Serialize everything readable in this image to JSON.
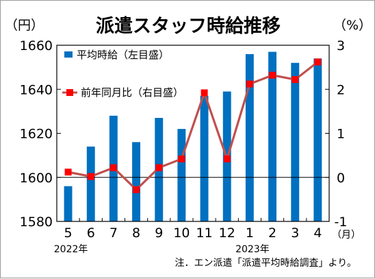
{
  "chart_data": {
    "type": "bar+line",
    "title": "派遣スタッフ時給推移",
    "left_unit": "（円）",
    "right_unit": "（%）",
    "month_unit": "（月）",
    "categories": [
      "5",
      "6",
      "7",
      "8",
      "9",
      "10",
      "11",
      "12",
      "1",
      "2",
      "3",
      "4"
    ],
    "year_labels": [
      {
        "text": "2022年",
        "category_index": 0
      },
      {
        "text": "2023年",
        "category_index": 8
      }
    ],
    "left_axis": {
      "min": 1580,
      "max": 1660,
      "ticks": [
        "1580",
        "1600",
        "1620",
        "1640",
        "1660"
      ]
    },
    "right_axis": {
      "min": -1,
      "max": 3,
      "ticks": [
        "-1",
        "0",
        "1",
        "2",
        "3"
      ]
    },
    "series": [
      {
        "name": "平均時給（左目盛）",
        "kind": "bar",
        "axis": "left",
        "color": "#0070c0",
        "values": [
          1596,
          1614,
          1628,
          1616,
          1627,
          1622,
          1637,
          1639,
          1656,
          1657,
          1652,
          1654
        ]
      },
      {
        "name": "前年同月比（右目盛）",
        "kind": "line",
        "axis": "right",
        "line_color": "#c0504d",
        "marker_color": "#ff0000",
        "values": [
          0.12,
          0.02,
          0.22,
          -0.28,
          0.22,
          0.42,
          1.92,
          0.42,
          2.12,
          2.32,
          2.22,
          2.62
        ]
      }
    ],
    "note": "注．エン派遣「派遣平均時給調査」より。",
    "grid": false
  }
}
